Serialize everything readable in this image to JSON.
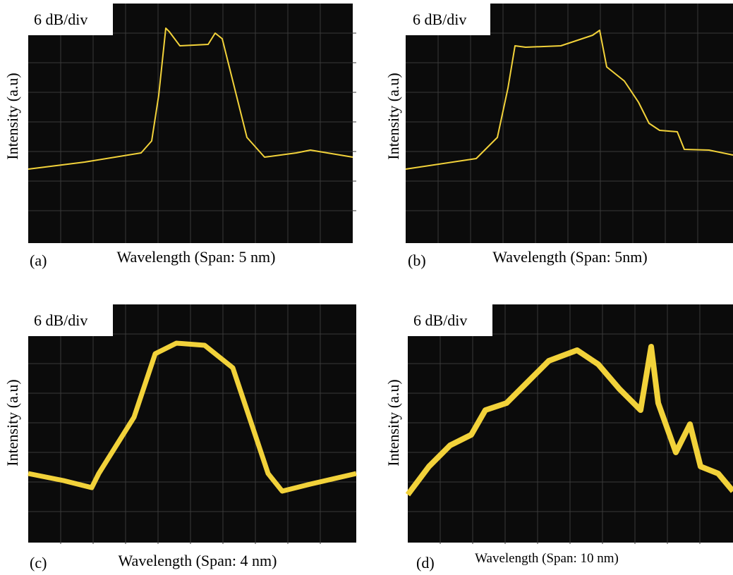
{
  "panels": [
    {
      "tag": "(a)",
      "scale": "6 dB/div",
      "y_label": "Intensity (a.u)",
      "x_label": "Wavelength (Span: 5 nm)"
    },
    {
      "tag": "(b)",
      "scale": "6 dB/div",
      "y_label": "Intensity (a.u)",
      "x_label": "Wavelength (Span: 5nm)"
    },
    {
      "tag": "(c)",
      "scale": "6 dB/div",
      "y_label": "Intensity (a.u)",
      "x_label": "Wavelength (Span: 4 nm)"
    },
    {
      "tag": "(d)",
      "scale": "6 dB/div",
      "y_label": "Intensity (a.u)",
      "x_label": "Wavelength (Span: 10 nm)"
    }
  ]
}
